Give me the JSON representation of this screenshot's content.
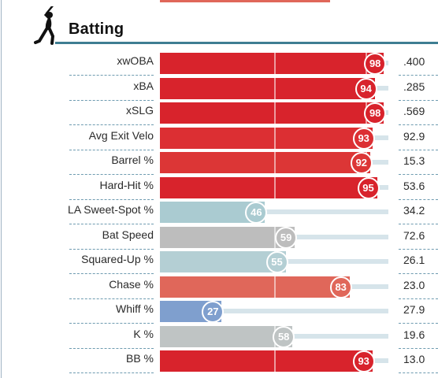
{
  "section": {
    "title": "Batting",
    "icon": "batter-icon"
  },
  "colors": {
    "elite": "#d8232c",
    "strong": "#e0675a",
    "average": "#bdbdbd",
    "below": "#aacbd1",
    "poor": "#7f9fce",
    "track": "#d6e4ea",
    "header_rule": "#3e7e92"
  },
  "rows": [
    {
      "label": "xwOBA",
      "percentile": 98,
      "value": ".400",
      "color": "#d8232c"
    },
    {
      "label": "xBA",
      "percentile": 94,
      "value": ".285",
      "color": "#d8232c"
    },
    {
      "label": "xSLG",
      "percentile": 98,
      "value": ".569",
      "color": "#d8232c"
    },
    {
      "label": "Avg Exit Velo",
      "percentile": 93,
      "value": "92.9",
      "color": "#dc2f33"
    },
    {
      "label": "Barrel %",
      "percentile": 92,
      "value": "15.3",
      "color": "#dc3636"
    },
    {
      "label": "Hard-Hit %",
      "percentile": 95,
      "value": "53.6",
      "color": "#d8232c"
    },
    {
      "label": "LA Sweet-Spot %",
      "percentile": 46,
      "value": "34.2",
      "color": "#aacbd1"
    },
    {
      "label": "Bat Speed",
      "percentile": 59,
      "value": "72.6",
      "color": "#bdbdbd"
    },
    {
      "label": "Squared-Up %",
      "percentile": 55,
      "value": "26.1",
      "color": "#b4cfd4"
    },
    {
      "label": "Chase %",
      "percentile": 83,
      "value": "23.0",
      "color": "#e0675a"
    },
    {
      "label": "Whiff %",
      "percentile": 27,
      "value": "27.9",
      "color": "#7f9fce"
    },
    {
      "label": "K %",
      "percentile": 58,
      "value": "19.6",
      "color": "#bfc4c4"
    },
    {
      "label": "BB %",
      "percentile": 93,
      "value": "13.0",
      "color": "#d8232c"
    }
  ]
}
